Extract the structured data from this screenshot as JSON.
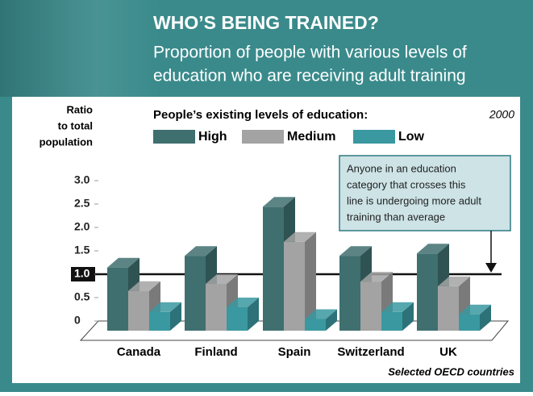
{
  "chart_data": {
    "type": "bar3d",
    "title": "WHO’S BEING TRAINED?",
    "subtitle": [
      "Proportion of people with various levels of",
      "education who are receiving adult training"
    ],
    "y_label": [
      "Ratio",
      "to total",
      "population"
    ],
    "legend_title": "People’s existing levels of education:",
    "year": "2000",
    "annotation": [
      "Anyone in an education",
      "category that crosses this",
      "line is undergoing more adult",
      "training than average"
    ],
    "source": "Selected OECD countries",
    "categories": [
      "Canada",
      "Finland",
      "Spain",
      "Switzerland",
      "UK"
    ],
    "series": [
      {
        "name": "High",
        "color": "#3f6f6f",
        "values": [
          1.35,
          1.6,
          2.65,
          1.6,
          1.65
        ]
      },
      {
        "name": "Medium",
        "color": "#a3a3a3",
        "values": [
          0.85,
          1.0,
          1.9,
          1.05,
          0.95
        ]
      },
      {
        "name": "Low",
        "color": "#3a98a0",
        "values": [
          0.4,
          0.5,
          0.25,
          0.4,
          0.35
        ]
      }
    ],
    "ylim": [
      0,
      3
    ],
    "yticks": [
      0,
      0.5,
      {
        "value": 1,
        "label": "1.0"
      },
      1.5,
      {
        "value": 2,
        "label": "2.0"
      },
      2.5,
      {
        "value": 3,
        "label": "3.0"
      }
    ],
    "reference_line": 1
  }
}
